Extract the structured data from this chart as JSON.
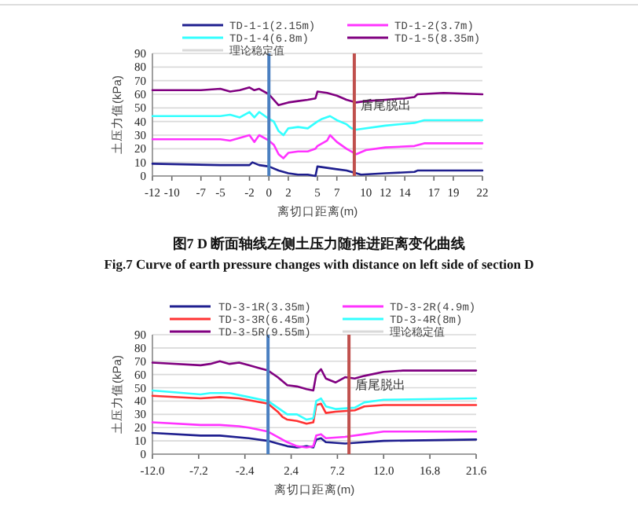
{
  "chart_data": [
    {
      "type": "line",
      "xlabel": "离切口距离(m)",
      "ylabel": "土压力值(kPa)",
      "annotations": [
        "图7 D 断面轴线左侧土压力随推进距离变化曲线",
        "Fig.7 Curve of earth pressure changes with distance on left side of section D"
      ],
      "xlim": [
        -12,
        22
      ],
      "ylim": [
        0,
        90
      ],
      "xticks": [
        -12,
        -10,
        -7,
        -5,
        -2,
        0,
        2,
        5,
        7,
        10,
        12,
        14,
        17,
        19,
        22
      ],
      "yticks": [
        0,
        10,
        20,
        30,
        40,
        50,
        60,
        70,
        80,
        90
      ],
      "grid": "y",
      "legend": "top",
      "ref_lines": [
        {
          "axis": "x",
          "value": 0,
          "color": "#4a7fc1"
        },
        {
          "axis": "x",
          "value": 8.8,
          "label": "盾尾脱出",
          "color": "#c0504d"
        }
      ],
      "series": [
        {
          "name": "TD-1-1(2.15m)",
          "color": "#1f1f8f",
          "x": [
            -12,
            -5,
            -2,
            -1.7,
            -1,
            0,
            1,
            2,
            3,
            4,
            4.8,
            5,
            6,
            7,
            8,
            9,
            9.5,
            12,
            15,
            15.3,
            22
          ],
          "values": [
            9,
            8,
            8,
            10,
            8,
            7,
            4,
            2,
            1,
            1,
            0,
            7,
            6,
            5,
            4,
            2,
            1,
            2,
            3,
            4,
            4
          ]
        },
        {
          "name": "TD-1-2(3.7m)",
          "color": "#ff33ff",
          "x": [
            -12,
            -5,
            -4,
            -3,
            -2,
            -1.5,
            -1,
            0,
            0.5,
            1,
            1.5,
            2,
            3,
            4,
            4.8,
            5,
            6,
            6.3,
            7,
            8,
            9,
            10,
            12,
            15,
            16,
            22
          ],
          "values": [
            27,
            27,
            26,
            28,
            30,
            25,
            30,
            26,
            23,
            16,
            13,
            17,
            18,
            18,
            20,
            22,
            26,
            30,
            25,
            20,
            16,
            19,
            21,
            22,
            24,
            24
          ]
        },
        {
          "name": "TD-1-4(6.8m)",
          "color": "#33ffff",
          "x": [
            -12,
            -5,
            -4,
            -3,
            -2,
            -1.5,
            -1,
            0,
            0.5,
            1,
            1.5,
            2,
            3,
            4,
            5,
            5.5,
            6.3,
            7,
            8,
            8.5,
            9,
            12,
            15,
            16,
            22
          ],
          "values": [
            44,
            44,
            45,
            43,
            47,
            43,
            47,
            42,
            40,
            33,
            30,
            35,
            36,
            35,
            40,
            42,
            44,
            41,
            38,
            35,
            34,
            37,
            39,
            41,
            41
          ]
        },
        {
          "name": "TD-1-5(8.35m)",
          "color": "#800080",
          "x": [
            -12,
            -7,
            -5,
            -4,
            -3,
            -2,
            -1.5,
            -1,
            0,
            1,
            2,
            3,
            4,
            4.8,
            5,
            6,
            7,
            8,
            9,
            10,
            12,
            14,
            15,
            15.3,
            18,
            22
          ],
          "values": [
            63,
            63,
            64,
            62,
            63,
            65,
            63,
            64,
            60,
            52,
            54,
            55,
            56,
            57,
            62,
            61,
            59,
            56,
            54,
            55,
            56,
            57,
            58,
            60,
            61,
            60
          ]
        },
        {
          "name": "理论稳定值",
          "color": "#d9d9d9"
        }
      ]
    },
    {
      "type": "line",
      "xlabel": "离切口距离(m)",
      "ylabel": "土压力值(kPa)",
      "xlim": [
        -12,
        21.6
      ],
      "ylim": [
        0,
        90
      ],
      "xticks": [
        {
          "value": -12,
          "label": "-12.0"
        },
        -7.2,
        -2.4,
        2.4,
        7.2,
        {
          "value": 12,
          "label": "12.0"
        },
        16.8,
        21.6
      ],
      "yticks": [
        0,
        10,
        20,
        30,
        40,
        50,
        60,
        70,
        80,
        90
      ],
      "grid": "y",
      "legend": "top",
      "ref_lines": [
        {
          "axis": "x",
          "value": 0,
          "color": "#4a7fc1"
        },
        {
          "axis": "x",
          "value": 8.4,
          "label": "盾尾脱出",
          "color": "#c0504d"
        }
      ],
      "series": [
        {
          "name": "TD-3-1R(3.35m)",
          "color": "#1f1f8f",
          "x": [
            -12,
            -7,
            -5,
            -2,
            0,
            1,
            2,
            3,
            4,
            4.7,
            5,
            5.5,
            6,
            8,
            10,
            12,
            21.6
          ],
          "values": [
            16,
            14,
            14,
            12,
            10,
            8,
            6,
            5,
            6,
            5,
            11,
            12,
            9,
            8,
            9,
            10,
            11
          ]
        },
        {
          "name": "TD-3-2R(4.9m)",
          "color": "#ff33ff",
          "x": [
            -12,
            -7,
            -5,
            -3,
            -2,
            0,
            1,
            2,
            3,
            4,
            4.7,
            5,
            5.5,
            6,
            8,
            10,
            12,
            21.6
          ],
          "values": [
            24,
            22,
            22,
            21,
            20,
            17,
            13,
            9,
            6,
            5,
            6,
            14,
            15,
            12,
            13,
            15,
            17,
            17
          ]
        },
        {
          "name": "TD-3-3R(6.45m)",
          "color": "#ff3333",
          "x": [
            -12,
            -7,
            -5,
            -3,
            0,
            1,
            1.5,
            2,
            3,
            4,
            4.7,
            5,
            5.5,
            6,
            7,
            9,
            10,
            12,
            21.6
          ],
          "values": [
            44,
            42,
            43,
            42,
            38,
            32,
            28,
            26,
            25,
            23,
            24,
            37,
            38,
            31,
            32,
            33,
            36,
            37,
            37
          ]
        },
        {
          "name": "TD-3-4R(8m)",
          "color": "#33ffff",
          "x": [
            -12,
            -7,
            -6,
            -4,
            -2,
            0,
            1,
            2,
            3,
            4,
            4.7,
            5,
            5.5,
            6,
            7,
            9,
            10,
            12,
            21.6
          ],
          "values": [
            48,
            45,
            46,
            46,
            43,
            40,
            35,
            30,
            30,
            26,
            27,
            40,
            42,
            36,
            34,
            35,
            39,
            41,
            42
          ]
        },
        {
          "name": "TD-3-5R(9.55m)",
          "color": "#800080",
          "x": [
            -12,
            -7,
            -6,
            -5,
            -4,
            -3,
            -2,
            -1,
            0,
            1,
            2,
            3,
            4,
            4.7,
            5,
            5.5,
            6,
            7,
            8,
            9,
            10,
            12,
            14,
            21.6
          ],
          "values": [
            69,
            67,
            68,
            70,
            68,
            69,
            67,
            65,
            63,
            58,
            52,
            51,
            49,
            48,
            60,
            64,
            57,
            54,
            58,
            57,
            59,
            62,
            63,
            63
          ]
        },
        {
          "name": "理论稳定值",
          "color": "#d9d9d9"
        }
      ]
    }
  ]
}
